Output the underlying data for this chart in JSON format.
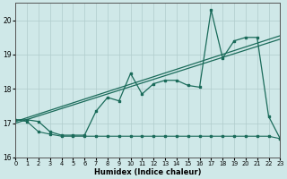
{
  "xlabel": "Humidex (Indice chaleur)",
  "background_color": "#cfe8e8",
  "line_color": "#1a6b5a",
  "xlim": [
    0,
    23
  ],
  "ylim": [
    16.0,
    20.5
  ],
  "x_ticks": [
    0,
    1,
    2,
    3,
    4,
    5,
    6,
    7,
    8,
    9,
    10,
    11,
    12,
    13,
    14,
    15,
    16,
    17,
    18,
    19,
    20,
    21,
    22,
    23
  ],
  "y_ticks": [
    16,
    17,
    18,
    19,
    20
  ],
  "series1_x": [
    0,
    1,
    2,
    3,
    4,
    5,
    6,
    7,
    8,
    9,
    10,
    11,
    12,
    13,
    14,
    15,
    16,
    17,
    18,
    19,
    20,
    21,
    22,
    23
  ],
  "series1_y": [
    17.1,
    17.1,
    17.05,
    16.75,
    16.65,
    16.65,
    16.65,
    17.35,
    17.75,
    17.65,
    18.45,
    17.85,
    18.15,
    18.25,
    18.25,
    18.1,
    18.05,
    20.3,
    18.9,
    19.4,
    19.5,
    19.5,
    17.2,
    16.55
  ],
  "series2_x": [
    0,
    23
  ],
  "series2_y": [
    17.05,
    19.55
  ],
  "series3_x": [
    0,
    23
  ],
  "series3_y": [
    17.0,
    19.45
  ],
  "series4_x": [
    0,
    1,
    2,
    3,
    4,
    5,
    6,
    7,
    8,
    9,
    10,
    11,
    12,
    13,
    14,
    15,
    16,
    17,
    18,
    19,
    20,
    21,
    22,
    23
  ],
  "series4_y": [
    17.1,
    17.05,
    16.75,
    16.68,
    16.62,
    16.62,
    16.62,
    16.62,
    16.62,
    16.62,
    16.62,
    16.62,
    16.62,
    16.62,
    16.62,
    16.62,
    16.62,
    16.62,
    16.62,
    16.62,
    16.62,
    16.62,
    16.62,
    16.55
  ]
}
